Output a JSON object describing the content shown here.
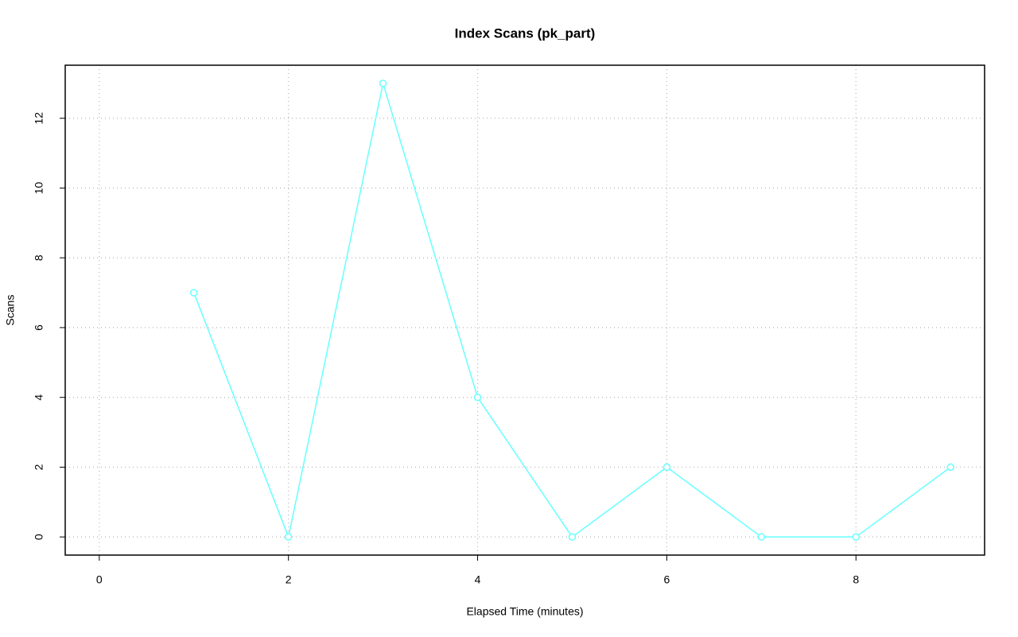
{
  "chart_data": {
    "type": "line",
    "title": "Index Scans (pk_part)",
    "x_label": "Elapsed Time (minutes)",
    "y_label": "Scans",
    "x": [
      1,
      2,
      3,
      4,
      5,
      6,
      7,
      8,
      9
    ],
    "series": [
      {
        "name": "pk_part",
        "color": "#66ffff",
        "values": [
          7,
          0,
          13,
          4,
          0,
          2,
          0,
          0,
          2
        ]
      }
    ],
    "xlim": [
      -0.36,
      9.36
    ],
    "xticks": [
      0,
      2,
      4,
      6,
      8
    ],
    "ylim": [
      -0.52,
      13.52
    ],
    "yticks": [
      0,
      2,
      4,
      6,
      8,
      10,
      12
    ],
    "grid": true
  }
}
